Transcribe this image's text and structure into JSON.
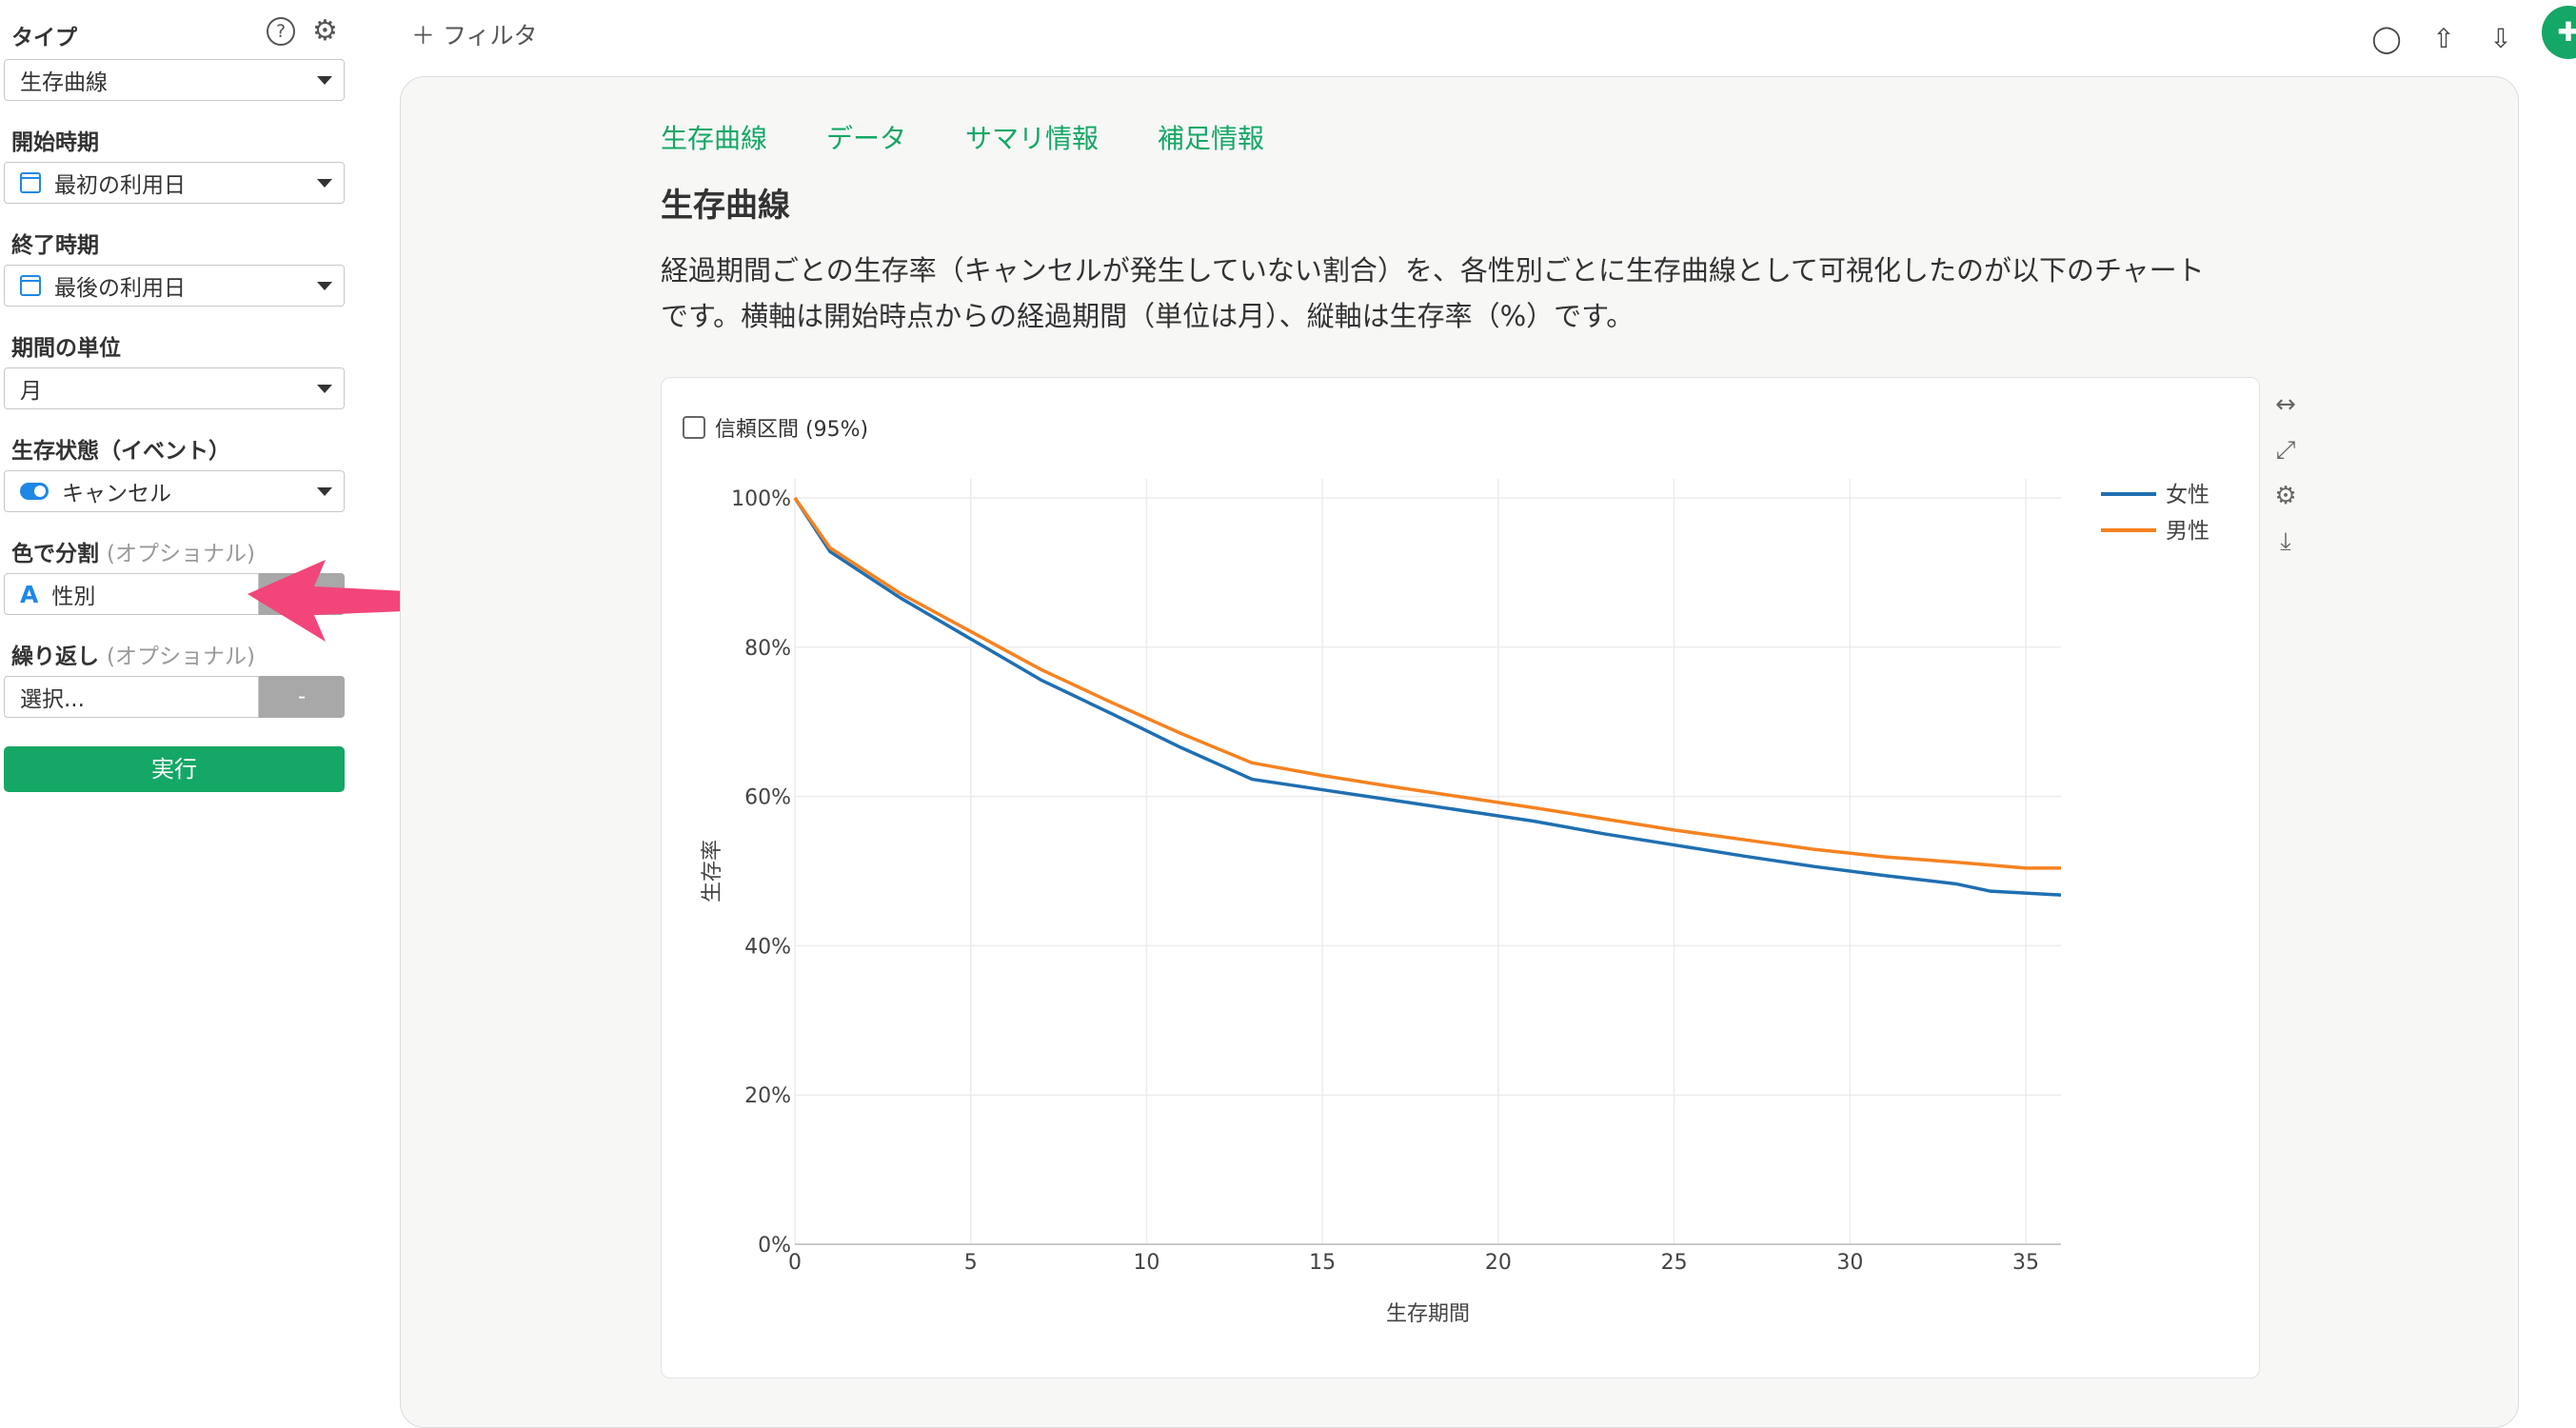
{
  "sidebar": {
    "type_label": "タイプ",
    "help_icon_text": "?",
    "type_value": "生存曲線",
    "start_label": "開始時期",
    "start_value": "最初の利用日",
    "end_label": "終了時期",
    "end_value": "最後の利用日",
    "unit_label": "期間の単位",
    "unit_value": "月",
    "event_label": "生存状態（イベント）",
    "event_value": "キャンセル",
    "color_label": "色で分割",
    "color_opt": "(オプショナル)",
    "color_value": "性別",
    "color_type_icon": "A",
    "repeat_label": "繰り返し",
    "repeat_opt": "(オプショナル)",
    "repeat_placeholder": "選択...",
    "repeat_btn": "-",
    "run_label": "実行"
  },
  "topbar": {
    "filter_label": "フィルタ"
  },
  "main": {
    "tabs": [
      "生存曲線",
      "データ",
      "サマリ情報",
      "補足情報"
    ],
    "title": "生存曲線",
    "description_line1": "経過期間ごとの生存率（キャンセルが発生していない割合）を、各性別ごとに生存曲線として可視化したのが以下のチャート",
    "description_line2": "です。横軸は開始時点からの経過期間（単位は月）、縦軸は生存率（%）です。",
    "ci_label": "信頼区間 (95%)"
  },
  "colors": {
    "accent": "#14a765",
    "female": "#1f6fb2",
    "male": "#f58220",
    "arrow": "#f2457a"
  },
  "chart_data": {
    "type": "line",
    "xlabel": "生存期間",
    "ylabel": "生存率",
    "xlim": [
      0,
      36
    ],
    "ylim": [
      0,
      100
    ],
    "x_ticks": [
      0,
      5,
      10,
      15,
      20,
      25,
      30,
      35
    ],
    "y_ticks": [
      "0%",
      "20%",
      "40%",
      "60%",
      "80%",
      "100%"
    ],
    "legend_position": "top-right",
    "grid": true,
    "series": [
      {
        "name": "女性",
        "color": "#1f6fb2",
        "x": [
          0,
          1,
          3,
          5,
          7,
          9,
          11,
          13,
          15,
          17,
          19,
          21,
          23,
          25,
          27,
          29,
          31,
          33,
          34,
          36
        ],
        "y": [
          100,
          92.8,
          86.6,
          81.1,
          75.6,
          71.1,
          66.5,
          62.3,
          60.9,
          59.5,
          58.1,
          56.7,
          55.0,
          53.5,
          52.0,
          50.6,
          49.4,
          48.3,
          47.3,
          46.8
        ]
      },
      {
        "name": "男性",
        "color": "#f58220",
        "x": [
          0,
          1,
          3,
          5,
          7,
          9,
          11,
          13,
          15,
          17,
          19,
          21,
          23,
          25,
          27,
          29,
          31,
          33,
          35,
          36
        ],
        "y": [
          100,
          93.3,
          87.2,
          82.1,
          77.0,
          72.6,
          68.4,
          64.5,
          62.8,
          61.3,
          59.9,
          58.5,
          57.0,
          55.5,
          54.2,
          52.9,
          51.9,
          51.2,
          50.4,
          50.4
        ]
      }
    ]
  }
}
